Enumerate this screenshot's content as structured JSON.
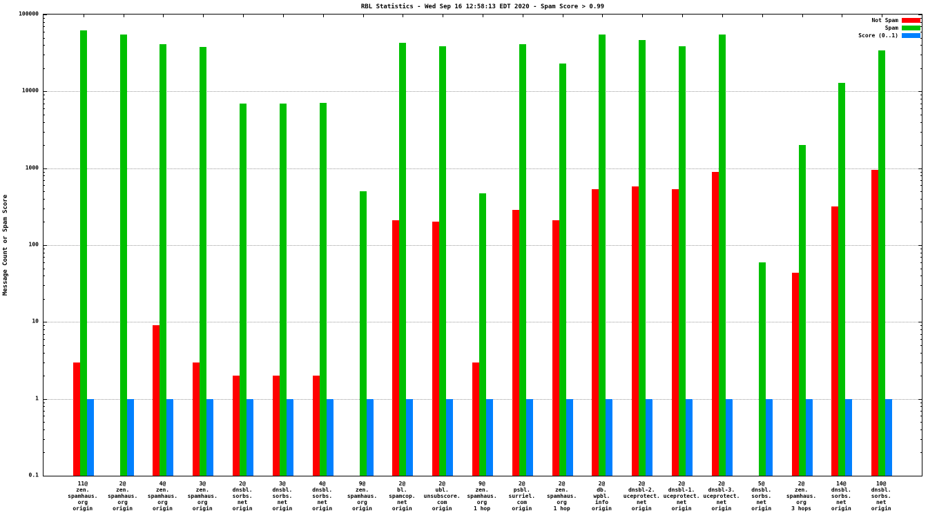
{
  "chart_data": {
    "type": "bar",
    "title": "RBL Statistics - Wed Sep 16 12:58:13 EDT 2020 - Spam Score > 0.99",
    "ylabel": "Message Count or Spam Score",
    "xlabel": "",
    "yscale": "log",
    "ylim": [
      0.1,
      100000
    ],
    "yticks": [
      0.1,
      1,
      10,
      100,
      1000,
      10000,
      100000
    ],
    "ytick_labels": [
      "0.1",
      "1",
      "10",
      "100",
      "1000",
      "10000",
      "100000"
    ],
    "grid": "horizontal-dotted",
    "legend_position": "top-right-inside",
    "categories": [
      [
        "11@",
        "zen.",
        "spamhaus.",
        "org",
        "origin"
      ],
      [
        "2@",
        "zen.",
        "spamhaus.",
        "org",
        "origin"
      ],
      [
        "4@",
        "zen.",
        "spamhaus.",
        "org",
        "origin"
      ],
      [
        "3@",
        "zen.",
        "spamhaus.",
        "org",
        "origin"
      ],
      [
        "2@",
        "dnsbl.",
        "sorbs.",
        "net",
        "origin"
      ],
      [
        "3@",
        "dnsbl.",
        "sorbs.",
        "net",
        "origin"
      ],
      [
        "4@",
        "dnsbl.",
        "sorbs.",
        "net",
        "origin"
      ],
      [
        "9@",
        "zen.",
        "spamhaus.",
        "org",
        "origin"
      ],
      [
        "2@",
        "bl.",
        "spamcop.",
        "net",
        "origin"
      ],
      [
        "2@",
        "ubl.",
        "unsubscore.",
        "com",
        "origin"
      ],
      [
        "9@",
        "zen.",
        "spamhaus.",
        "org",
        "1 hop"
      ],
      [
        "2@",
        "psbl.",
        "surriel.",
        "com",
        "origin"
      ],
      [
        "2@",
        "zen.",
        "spamhaus.",
        "org",
        "1 hop"
      ],
      [
        "2@",
        "db.",
        "wpbl.",
        "info",
        "origin"
      ],
      [
        "2@",
        "dnsbl-2.",
        "uceprotect.",
        "net",
        "origin"
      ],
      [
        "2@",
        "dnsbl-1.",
        "uceprotect.",
        "net",
        "origin"
      ],
      [
        "2@",
        "dnsbl-3.",
        "uceprotect.",
        "net",
        "origin"
      ],
      [
        "5@",
        "dnsbl.",
        "sorbs.",
        "net",
        "origin"
      ],
      [
        "2@",
        "zen.",
        "spamhaus.",
        "org",
        "3 hops"
      ],
      [
        "14@",
        "dnsbl.",
        "sorbs.",
        "net",
        "origin"
      ],
      [
        "10@",
        "dnsbl.",
        "sorbs.",
        "net",
        "origin"
      ]
    ],
    "series": [
      {
        "name": "Not Spam",
        "color": "#ff0000",
        "values": [
          3,
          0,
          9,
          3,
          2,
          2,
          2,
          0,
          210,
          200,
          3,
          290,
          210,
          530,
          580,
          530,
          900,
          0,
          44,
          320,
          950
        ]
      },
      {
        "name": "Spam",
        "color": "#00c000",
        "values": [
          62000,
          55000,
          41000,
          38000,
          7000,
          7000,
          7100,
          500,
          43000,
          39000,
          470,
          41000,
          23000,
          55000,
          47000,
          39000,
          55000,
          60,
          2000,
          13000,
          34000
        ]
      },
      {
        "name": "Score (0..1)",
        "color": "#0080ff",
        "values": [
          1,
          1,
          1,
          1,
          1,
          1,
          1,
          1,
          1,
          1,
          1,
          1,
          1,
          1,
          1,
          1,
          1,
          1,
          1,
          1,
          1
        ]
      }
    ]
  },
  "colors": {
    "background": "#ffffff",
    "axis": "#000000",
    "grid": "#9a9a9a",
    "not_spam": "#ff0000",
    "spam": "#00c000",
    "score": "#0080ff"
  }
}
